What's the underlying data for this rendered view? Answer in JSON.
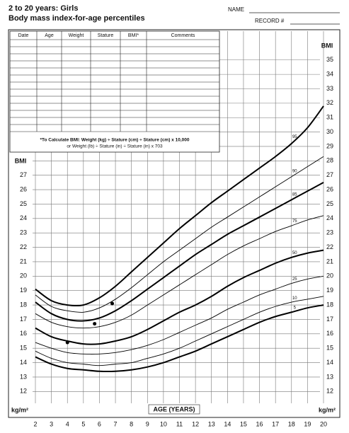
{
  "header": {
    "title": "2 to 20 years: Girls",
    "subtitle": "Body mass index-for-age percentiles",
    "name_label": "NAME",
    "record_label": "RECORD #"
  },
  "record_table": {
    "columns": [
      "Date",
      "Age",
      "Weight",
      "Stature",
      "BMI*",
      "Comments"
    ],
    "note": [
      "*To Calculate BMI: Weight (kg) ÷ Stature (cm) ÷ Stature (cm) x 10,000",
      "or Weight (lb) ÷ Stature (in) ÷ Stature (in) x 703"
    ]
  },
  "chart_data": {
    "type": "line",
    "xlabel": "AGE (YEARS)",
    "ylabel": "BMI",
    "y_unit": "kg/m²",
    "color": "#000000",
    "grid": true,
    "xlim": [
      2,
      20
    ],
    "ylim": [
      10.2,
      37
    ],
    "xticks": [
      2,
      3,
      4,
      5,
      6,
      7,
      8,
      9,
      10,
      11,
      12,
      13,
      14,
      15,
      16,
      17,
      18,
      19,
      20
    ],
    "yticks": [
      12,
      13,
      14,
      15,
      16,
      17,
      18,
      19,
      20,
      21,
      22,
      23,
      24,
      25,
      26,
      27,
      28,
      29,
      30,
      31,
      32,
      33,
      34,
      35
    ],
    "x": [
      2,
      3,
      4,
      5,
      6,
      7,
      8,
      9,
      10,
      11,
      12,
      13,
      14,
      15,
      16,
      17,
      18,
      19,
      20
    ],
    "series": [
      {
        "name": "95",
        "width": 2,
        "values": [
          19.1,
          18.3,
          18.0,
          18.0,
          18.5,
          19.3,
          20.3,
          21.3,
          22.3,
          23.3,
          24.2,
          25.1,
          25.9,
          26.7,
          27.5,
          28.3,
          29.2,
          30.3,
          31.8
        ]
      },
      {
        "name": "90",
        "width": 0.9,
        "values": [
          18.7,
          17.9,
          17.6,
          17.5,
          17.8,
          18.4,
          19.2,
          20.1,
          21.0,
          21.8,
          22.6,
          23.4,
          24.1,
          24.8,
          25.5,
          26.2,
          26.9,
          27.6,
          28.3
        ]
      },
      {
        "name": "85",
        "width": 2,
        "values": [
          18.2,
          17.4,
          17.0,
          16.9,
          17.1,
          17.6,
          18.3,
          19.1,
          19.9,
          20.7,
          21.5,
          22.2,
          22.9,
          23.5,
          24.1,
          24.7,
          25.3,
          25.9,
          26.5
        ]
      },
      {
        "name": "75",
        "width": 0.9,
        "values": [
          17.4,
          16.8,
          16.5,
          16.4,
          16.5,
          16.8,
          17.3,
          18.0,
          18.7,
          19.4,
          20.1,
          20.8,
          21.5,
          22.1,
          22.6,
          23.1,
          23.5,
          23.9,
          24.2
        ]
      },
      {
        "name": "50",
        "width": 2,
        "values": [
          16.4,
          15.8,
          15.5,
          15.3,
          15.3,
          15.5,
          15.8,
          16.3,
          16.9,
          17.5,
          18.0,
          18.6,
          19.3,
          19.9,
          20.4,
          20.9,
          21.3,
          21.6,
          21.8
        ]
      },
      {
        "name": "25",
        "width": 0.9,
        "values": [
          15.4,
          15.0,
          14.7,
          14.6,
          14.6,
          14.7,
          14.9,
          15.2,
          15.6,
          16.1,
          16.6,
          17.1,
          17.7,
          18.2,
          18.7,
          19.1,
          19.5,
          19.8,
          20.0
        ]
      },
      {
        "name": "10",
        "width": 0.9,
        "values": [
          14.8,
          14.3,
          14.0,
          13.9,
          13.8,
          13.9,
          14.0,
          14.3,
          14.6,
          15.0,
          15.5,
          16.0,
          16.5,
          17.0,
          17.5,
          17.9,
          18.2,
          18.4,
          18.6
        ]
      },
      {
        "name": "5",
        "width": 2,
        "values": [
          14.4,
          13.9,
          13.6,
          13.5,
          13.4,
          13.4,
          13.5,
          13.7,
          14.0,
          14.4,
          14.8,
          15.3,
          15.8,
          16.3,
          16.8,
          17.2,
          17.5,
          17.8,
          18.0
        ]
      }
    ],
    "points": {
      "x": [
        4,
        5.7,
        6.8
      ],
      "y": [
        15.4,
        16.7,
        18.1
      ]
    }
  }
}
